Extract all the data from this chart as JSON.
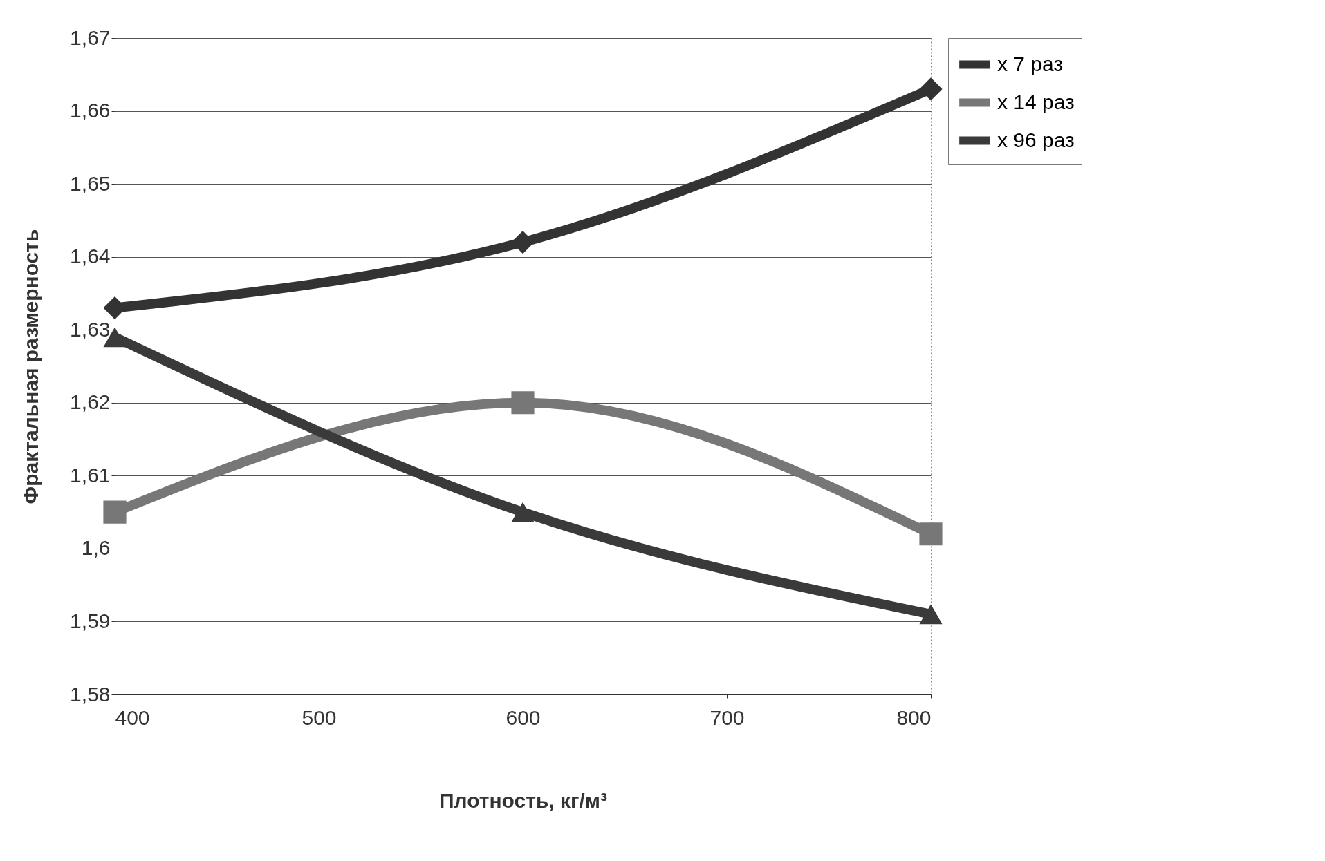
{
  "chart_data": {
    "type": "line",
    "xlabel": "Плотность, кг/м³",
    "ylabel": "Фрактальная размерность",
    "x": [
      400,
      600,
      800
    ],
    "series": [
      {
        "name": "x 7 раз",
        "color": "#333333",
        "marker": "diamond",
        "values": [
          1.633,
          1.642,
          1.663
        ]
      },
      {
        "name": "x 14 раз",
        "color": "#777777",
        "marker": "square",
        "values": [
          1.605,
          1.62,
          1.602
        ]
      },
      {
        "name": "x 96 раз",
        "color": "#3a3a3a",
        "marker": "triangle",
        "values": [
          1.629,
          1.605,
          1.591
        ]
      }
    ],
    "xlim": [
      400,
      800
    ],
    "xticks": [
      400,
      500,
      600,
      700,
      800
    ],
    "ylim": [
      1.58,
      1.67
    ],
    "yticks": [
      {
        "value": 1.58,
        "label": "1,58"
      },
      {
        "value": 1.59,
        "label": "1,59"
      },
      {
        "value": 1.6,
        "label": "1,6"
      },
      {
        "value": 1.61,
        "label": "1,61"
      },
      {
        "value": 1.62,
        "label": "1,62"
      },
      {
        "value": 1.63,
        "label": "1,63"
      },
      {
        "value": 1.64,
        "label": "1,64"
      },
      {
        "value": 1.65,
        "label": "1,65"
      },
      {
        "value": 1.66,
        "label": "1,66"
      },
      {
        "value": 1.67,
        "label": "1,67"
      }
    ],
    "grid": "y",
    "legend": "right",
    "line_style": "solid"
  }
}
